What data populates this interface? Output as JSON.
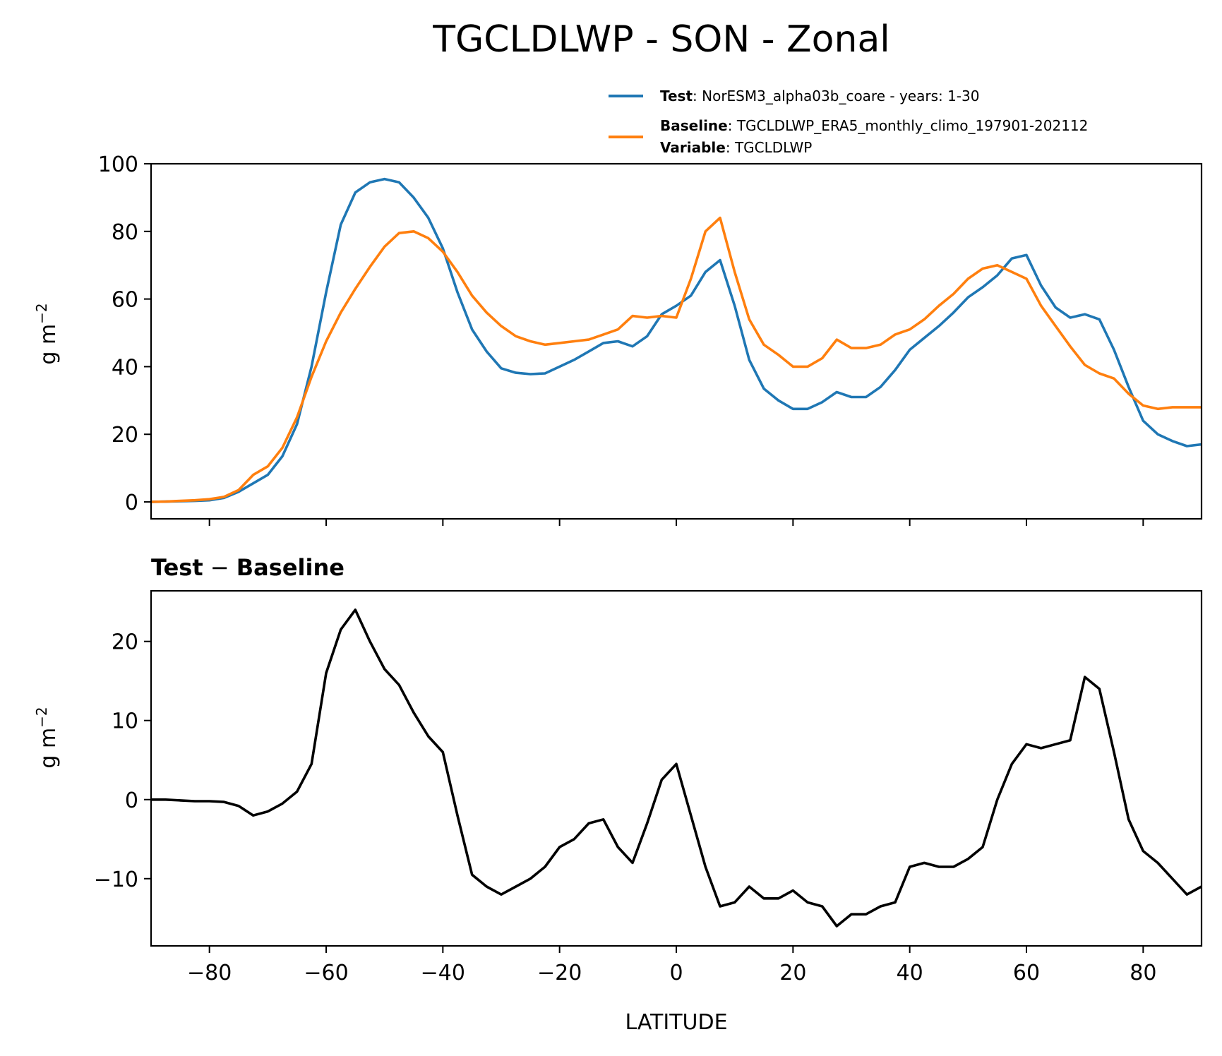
{
  "chart_data": [
    {
      "type": "line",
      "title": "TGCLDLWP - SON - Zonal",
      "xlabel": "",
      "ylabel": "g m⁻²",
      "xlim": [
        -90,
        90
      ],
      "ylim": [
        -5,
        100
      ],
      "xticks": [
        -80,
        -60,
        -40,
        -20,
        0,
        20,
        40,
        60,
        80
      ],
      "xtick_labels_visible": false,
      "yticks": [
        0,
        20,
        40,
        60,
        80,
        100
      ],
      "ytick_labels": [
        "0",
        "20",
        "40",
        "60",
        "80",
        "100"
      ],
      "grid": false,
      "legend": {
        "placement": "top-right (above axes)",
        "entries": [
          {
            "key": "Test",
            "label": "NorESM3_alpha03b_coare - years: 1-30",
            "color": "#1f77b4"
          },
          {
            "key": "Baseline",
            "label": "TGCLDLWP_ERA5_monthly_climo_197901-202112",
            "color": "#ff7f0e",
            "extra_key": "Variable",
            "extra_label": "TGCLDLWP"
          }
        ]
      },
      "x": [
        -90,
        -87.5,
        -85,
        -82.5,
        -80,
        -77.5,
        -75,
        -72.5,
        -70,
        -67.5,
        -65,
        -62.5,
        -60,
        -57.5,
        -55,
        -52.5,
        -50,
        -47.5,
        -45,
        -42.5,
        -40,
        -37.5,
        -35,
        -32.5,
        -30,
        -27.5,
        -25,
        -22.5,
        -20,
        -17.5,
        -15,
        -12.5,
        -10,
        -7.5,
        -5,
        -2.5,
        0,
        2.5,
        5,
        7.5,
        10,
        12.5,
        15,
        17.5,
        20,
        22.5,
        25,
        27.5,
        30,
        32.5,
        35,
        37.5,
        40,
        42.5,
        45,
        47.5,
        50,
        52.5,
        55,
        57.5,
        60,
        62.5,
        65,
        67.5,
        70,
        72.5,
        75,
        77.5,
        80,
        82.5,
        85,
        87.5,
        90
      ],
      "series": [
        {
          "name": "Test",
          "color": "#1f77b4",
          "values": [
            0.0,
            0.1,
            0.2,
            0.3,
            0.5,
            1.2,
            3.0,
            5.5,
            8.0,
            13.5,
            23.0,
            40.0,
            62.0,
            82.0,
            91.5,
            94.5,
            95.5,
            94.5,
            90.0,
            84.0,
            75.0,
            62.0,
            51.0,
            44.5,
            39.5,
            38.2,
            37.8,
            38.0,
            40.0,
            42.0,
            44.5,
            47.0,
            47.5,
            46.0,
            49.0,
            55.5,
            58.0,
            61.0,
            68.0,
            71.5,
            58.0,
            42.0,
            33.5,
            30.0,
            27.5,
            27.5,
            29.5,
            32.5,
            31.0,
            31.0,
            34.0,
            39.0,
            45.0,
            48.5,
            52.0,
            56.0,
            60.5,
            63.5,
            67.0,
            72.0,
            73.0,
            64.0,
            57.5,
            54.5,
            55.5,
            54.0,
            45.0,
            34.0,
            24.0,
            20.0,
            18.0,
            16.5,
            17.0
          ]
        },
        {
          "name": "Baseline",
          "color": "#ff7f0e",
          "values": [
            0.0,
            0.1,
            0.3,
            0.5,
            0.8,
            1.5,
            3.5,
            8.0,
            10.5,
            16.0,
            25.0,
            37.0,
            47.5,
            56.0,
            63.0,
            69.5,
            75.5,
            79.5,
            80.0,
            78.0,
            74.0,
            68.0,
            61.0,
            56.0,
            52.0,
            49.0,
            47.5,
            46.5,
            47.0,
            47.5,
            48.0,
            49.5,
            51.0,
            55.0,
            54.5,
            55.0,
            54.5,
            66.0,
            80.0,
            84.0,
            68.0,
            54.0,
            46.5,
            43.5,
            40.0,
            40.0,
            42.5,
            48.0,
            45.5,
            45.5,
            46.5,
            49.5,
            51.0,
            54.0,
            58.0,
            61.5,
            66.0,
            69.0,
            70.0,
            68.0,
            66.0,
            58.0,
            52.0,
            46.0,
            40.5,
            38.0,
            36.5,
            32.0,
            28.5,
            27.5,
            28.0,
            28.0,
            28.0
          ]
        }
      ]
    },
    {
      "type": "line",
      "title": "Test − Baseline",
      "xlabel": "LATITUDE",
      "ylabel": "g m⁻²",
      "xlim": [
        -90,
        90
      ],
      "ylim": [
        -18.5,
        26.4
      ],
      "xticks": [
        -80,
        -60,
        -40,
        -20,
        0,
        20,
        40,
        60,
        80
      ],
      "xtick_labels": [
        "−80",
        "−60",
        "−40",
        "−20",
        "0",
        "20",
        "40",
        "60",
        "80"
      ],
      "yticks": [
        -10,
        0,
        10,
        20
      ],
      "ytick_labels": [
        "−10",
        "0",
        "10",
        "20"
      ],
      "grid": false,
      "x": [
        -90,
        -87.5,
        -85,
        -82.5,
        -80,
        -77.5,
        -75,
        -72.5,
        -70,
        -67.5,
        -65,
        -62.5,
        -60,
        -57.5,
        -55,
        -52.5,
        -50,
        -47.5,
        -45,
        -42.5,
        -40,
        -37.5,
        -35,
        -32.5,
        -30,
        -27.5,
        -25,
        -22.5,
        -20,
        -17.5,
        -15,
        -12.5,
        -10,
        -7.5,
        -5,
        -2.5,
        0,
        2.5,
        5,
        7.5,
        10,
        12.5,
        15,
        17.5,
        20,
        22.5,
        25,
        27.5,
        30,
        32.5,
        35,
        37.5,
        40,
        42.5,
        45,
        47.5,
        50,
        52.5,
        55,
        57.5,
        60,
        62.5,
        65,
        67.5,
        70,
        72.5,
        75,
        77.5,
        80,
        82.5,
        85,
        87.5,
        90
      ],
      "series": [
        {
          "name": "Test - Baseline",
          "color": "#000000",
          "values": [
            0.0,
            0.0,
            -0.1,
            -0.2,
            -0.2,
            -0.3,
            -0.8,
            -2.0,
            -1.5,
            -0.5,
            1.0,
            4.5,
            16.0,
            21.5,
            24.0,
            20.0,
            16.5,
            14.5,
            11.0,
            8.0,
            6.0,
            -2.0,
            -9.5,
            -11.0,
            -12.0,
            -11.0,
            -10.0,
            -8.5,
            -6.0,
            -5.0,
            -3.0,
            -2.5,
            -6.0,
            -8.0,
            -3.0,
            2.5,
            4.5,
            -2.0,
            -8.5,
            -13.5,
            -13.0,
            -11.0,
            -12.5,
            -12.5,
            -11.5,
            -13.0,
            -13.5,
            -16.0,
            -14.5,
            -14.5,
            -13.5,
            -13.0,
            -8.5,
            -8.0,
            -8.5,
            -8.5,
            -7.5,
            -6.0,
            0.0,
            4.5,
            7.0,
            6.5,
            7.0,
            7.5,
            15.5,
            14.0,
            6.0,
            -2.5,
            -6.5,
            -8.0,
            -10.0,
            -12.0,
            -11.0
          ]
        }
      ]
    }
  ],
  "figure": {
    "title": "TGCLDLWP - SON - Zonal",
    "top_panel": {
      "ylabel_base": "g m",
      "ylabel_sup": "−2",
      "legend": {
        "test_key": "Test",
        "test_sep": ": ",
        "test_label": "NorESM3_alpha03b_coare - years: 1-30",
        "baseline_key": "Baseline",
        "baseline_sep": ": ",
        "baseline_label": "TGCLDLWP_ERA5_monthly_climo_197901-202112",
        "variable_key": "Variable",
        "variable_sep": ": ",
        "variable_label": "TGCLDLWP"
      }
    },
    "bottom_panel": {
      "title_left": "Test",
      "title_op": " − ",
      "title_right": "Baseline",
      "ylabel_base": "g m",
      "ylabel_sup": "−2",
      "xlabel": "LATITUDE"
    }
  }
}
